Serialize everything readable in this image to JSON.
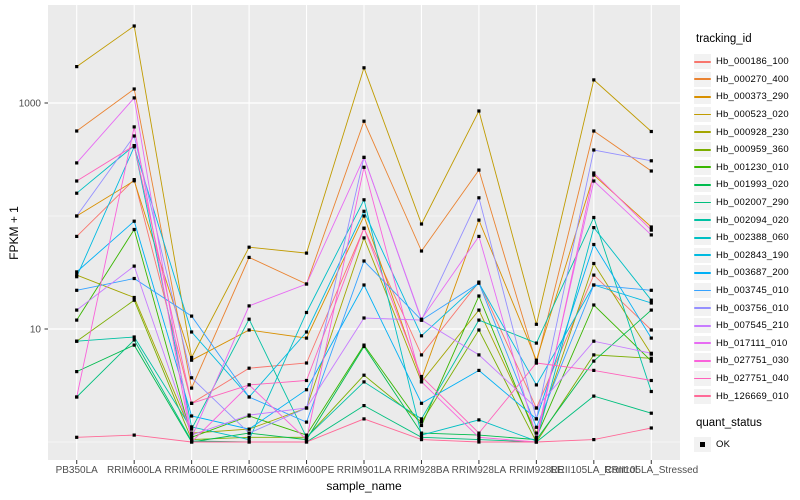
{
  "chart_data": {
    "type": "line",
    "title": "",
    "xlabel": "sample_name",
    "ylabel": "FPKM + 1",
    "y_scale": "log10",
    "grid": true,
    "x_categories": [
      "PB350LA",
      "RRIM600LA",
      "RRIM600LE",
      "RRIM600SE",
      "RRIM600PE",
      "RRIM901LA",
      "RRIM928BA",
      "RRIM928LA",
      "RRIM928LE",
      "RRII105LA_Control",
      "RRII105LA_Stressed"
    ],
    "y_ticks": [
      10,
      1000
    ],
    "y_tick_labels": [
      "10",
      "1000"
    ],
    "y_minor_gridlines": [
      1,
      100
    ],
    "ylim": [
      0.7,
      7000
    ],
    "marker": "black-square",
    "legend_title": "tracking_id",
    "legend_position": "right",
    "legend2": {
      "title": "quant_status",
      "items": [
        {
          "label": "OK",
          "marker": "black-square"
        }
      ]
    },
    "style": {
      "panel_bg": "#EBEBEB",
      "grid_color": "#FFFFFF",
      "axis_text_color": "#4D4D4D",
      "tick_color": "#333333",
      "marker_color": "#000000",
      "legend_key_bg": "#F2F2F2"
    },
    "series": [
      {
        "name": "Hb_000186_100",
        "color": "#F8766D",
        "values": [
          66,
          210,
          2.2,
          4.5,
          5.0,
          78,
          5.9,
          26,
          2.0,
          30,
          9.8
        ]
      },
      {
        "name": "Hb_000270_400",
        "color": "#EA8331",
        "values": [
          565,
          1330,
          3.0,
          43,
          25,
          690,
          49,
          255,
          5.0,
          565,
          250
        ]
      },
      {
        "name": "Hb_000373_290",
        "color": "#D89000",
        "values": [
          100,
          205,
          5.3,
          9.8,
          8.3,
          100,
          3.6,
          92,
          5.3,
          230,
          80
        ]
      },
      {
        "name": "Hb_000523_020",
        "color": "#C09B00",
        "values": [
          2100,
          4800,
          5.6,
          53,
          47,
          2050,
          85,
          850,
          11,
          1600,
          560
        ]
      },
      {
        "name": "Hb_000928_230",
        "color": "#A3A500",
        "values": [
          30,
          19,
          1.2,
          1.3,
          2.0,
          64,
          3.4,
          14.7,
          1.2,
          38,
          6.0
        ]
      },
      {
        "name": "Hb_000959_360",
        "color": "#7CAE00",
        "values": [
          7.8,
          18,
          1.05,
          1.1,
          1.1,
          3.9,
          1.5,
          9.8,
          1.0,
          5.9,
          5.5
        ]
      },
      {
        "name": "Hb_001230_010",
        "color": "#39B600",
        "values": [
          12,
          76,
          1.1,
          1.7,
          1.15,
          7.2,
          1.4,
          19.6,
          1.1,
          16.3,
          5.2
        ]
      },
      {
        "name": "Hb_001993_020",
        "color": "#00BB4E",
        "values": [
          4.2,
          7.2,
          1.0,
          1.2,
          1.05,
          7.0,
          1.2,
          1.15,
          1.05,
          5.2,
          14.7
        ]
      },
      {
        "name": "Hb_002007_290",
        "color": "#00BF7D",
        "values": [
          2.5,
          8.0,
          1.02,
          1.0,
          1.0,
          2.1,
          1.1,
          1.05,
          1.0,
          2.55,
          1.8
        ]
      },
      {
        "name": "Hb_002094_020",
        "color": "#00C1A3",
        "values": [
          7.8,
          8.5,
          1.3,
          12.2,
          1.1,
          3.4,
          1.6,
          12,
          7.5,
          97,
          2.8
        ]
      },
      {
        "name": "Hb_002388_060",
        "color": "#00BFC4",
        "values": [
          159,
          420,
          1.36,
          1.05,
          14,
          139,
          1.15,
          1.57,
          1.02,
          79,
          18
        ]
      },
      {
        "name": "Hb_002843_190",
        "color": "#00BAE0",
        "values": [
          29,
          410,
          9.4,
          2.5,
          9.4,
          110,
          8.7,
          25.5,
          3.2,
          24.5,
          17
        ]
      },
      {
        "name": "Hb_003687_200",
        "color": "#00B0F6",
        "values": [
          32,
          90,
          1.7,
          1.3,
          2.9,
          24.5,
          2.2,
          4.3,
          1.6,
          56,
          8.3
        ]
      },
      {
        "name": "Hb_003745_010",
        "color": "#35A2FF",
        "values": [
          22,
          28,
          13,
          2.5,
          1.5,
          40,
          12,
          25.5,
          1.35,
          24.5,
          22
        ]
      },
      {
        "name": "Hb_003756_010",
        "color": "#9590FF",
        "values": [
          100,
          510,
          3.7,
          1.2,
          2.0,
          330,
          12,
          145,
          1.6,
          384,
          308
        ]
      },
      {
        "name": "Hb_007545_210",
        "color": "#C77CFF",
        "values": [
          14.7,
          36,
          1.15,
          1.73,
          2.0,
          12.5,
          12,
          5.9,
          2.0,
          7.8,
          6.1
        ]
      },
      {
        "name": "Hb_017111_010",
        "color": "#E76BF3",
        "values": [
          295,
          1110,
          1.1,
          16,
          25,
          330,
          12.2,
          66,
          1.1,
          204,
          68
        ]
      },
      {
        "name": "Hb_027751_030",
        "color": "#FA62DB",
        "values": [
          2.5,
          615,
          1.0,
          3.2,
          1.05,
          270,
          3.4,
          1.1,
          1.0,
          240,
          75
        ]
      },
      {
        "name": "Hb_027751_040",
        "color": "#FF62BC",
        "values": [
          204,
          420,
          2.2,
          3.2,
          3.5,
          78,
          3.8,
          1.2,
          5.0,
          4.3,
          3.5
        ]
      },
      {
        "name": "Hb_126669_010",
        "color": "#FF6A98",
        "values": [
          1.1,
          1.15,
          1.0,
          1.0,
          1.0,
          1.6,
          1.05,
          1.0,
          1.0,
          1.05,
          1.33
        ]
      }
    ]
  }
}
